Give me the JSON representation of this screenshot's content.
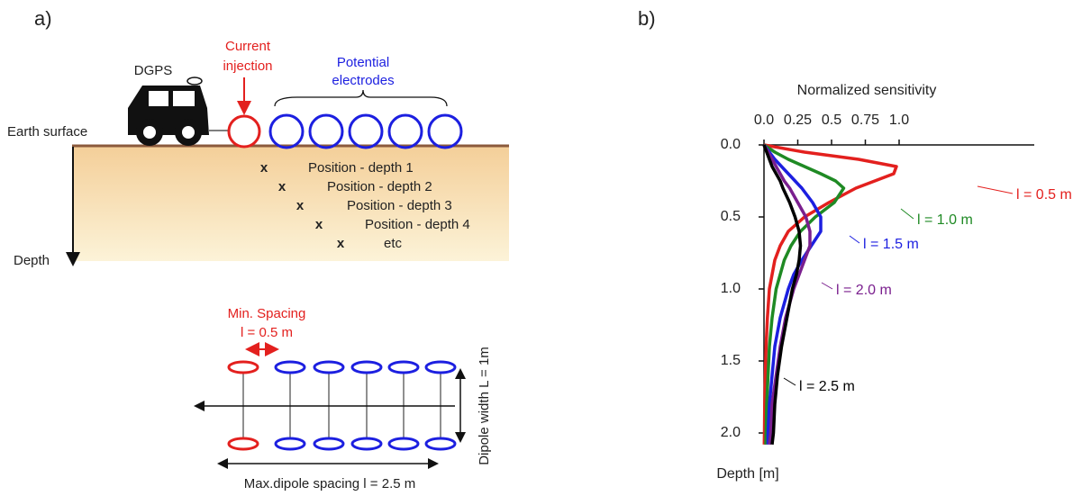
{
  "panel_a": {
    "label": "a)",
    "dgps": "DGPS",
    "current_1": "Current",
    "current_2": "injection",
    "potential_1": "Potential",
    "potential_2": "electrodes",
    "earth_surface": "Earth surface",
    "depth": "Depth",
    "positions": [
      "Position - depth 1",
      "Position - depth 2",
      "Position - depth 3",
      "Position - depth 4",
      "etc"
    ],
    "position_mark": "x",
    "min_spacing": "Min. Spacing",
    "min_spacing_value": "l = 0.5 m",
    "dipole_width": "Dipole width L = 1m",
    "max_spacing": "Max.dipole spacing l = 2.5 m"
  },
  "panel_b": {
    "label": "b)"
  },
  "chart_data": {
    "type": "line",
    "title": "Normalized sensitivity",
    "y_label": "Depth [m]",
    "x": [
      0,
      0.05,
      0.1,
      0.15,
      0.2,
      0.25,
      0.3,
      0.4,
      0.5,
      0.6,
      0.7,
      0.8,
      0.9,
      1.0,
      1.2,
      1.4,
      1.6,
      1.8,
      2.0,
      2.08
    ],
    "series": [
      {
        "name": "l = 0.5 m",
        "color": "#e3201e",
        "values": [
          0,
          0.3,
          0.7,
          0.98,
          0.96,
          0.82,
          0.68,
          0.48,
          0.3,
          0.18,
          0.12,
          0.08,
          0.06,
          0.04,
          0.025,
          0.015,
          0.01,
          0.005,
          0.003,
          0.002
        ]
      },
      {
        "name": "l = 1.0 m",
        "color": "#1f8a24",
        "values": [
          0,
          0.08,
          0.18,
          0.3,
          0.42,
          0.53,
          0.59,
          0.52,
          0.38,
          0.27,
          0.2,
          0.15,
          0.12,
          0.09,
          0.06,
          0.04,
          0.03,
          0.02,
          0.015,
          0.013
        ]
      },
      {
        "name": "l = 1.5 m",
        "color": "#1c1fe0",
        "values": [
          0,
          0.04,
          0.08,
          0.13,
          0.18,
          0.23,
          0.28,
          0.36,
          0.42,
          0.42,
          0.35,
          0.28,
          0.22,
          0.18,
          0.12,
          0.08,
          0.06,
          0.04,
          0.03,
          0.03
        ]
      },
      {
        "name": "l = 2.0 m",
        "color": "#7a1f8e",
        "values": [
          0,
          0.03,
          0.06,
          0.09,
          0.12,
          0.15,
          0.19,
          0.25,
          0.31,
          0.34,
          0.34,
          0.3,
          0.26,
          0.22,
          0.16,
          0.12,
          0.09,
          0.06,
          0.05,
          0.04
        ]
      },
      {
        "name": "l = 2.5 m",
        "color": "#000000",
        "values": [
          0,
          0.02,
          0.04,
          0.06,
          0.09,
          0.12,
          0.14,
          0.19,
          0.23,
          0.26,
          0.27,
          0.26,
          0.24,
          0.21,
          0.17,
          0.13,
          0.1,
          0.08,
          0.07,
          0.06
        ]
      }
    ],
    "xlim": [
      0,
      2.0
    ],
    "ylim": [
      0,
      2.1
    ],
    "xticks": [
      {
        "value": 0,
        "label": "0.0"
      },
      0.25,
      0.5,
      0.75,
      {
        "value": 1,
        "label": "1.0"
      }
    ],
    "yticks": [
      {
        "value": 0,
        "label": "0.0"
      },
      0.5,
      {
        "value": 1,
        "label": "1.0"
      },
      1.5,
      {
        "value": 2,
        "label": "2.0"
      }
    ],
    "y_inverted": true,
    "x_axis_position": "top"
  }
}
